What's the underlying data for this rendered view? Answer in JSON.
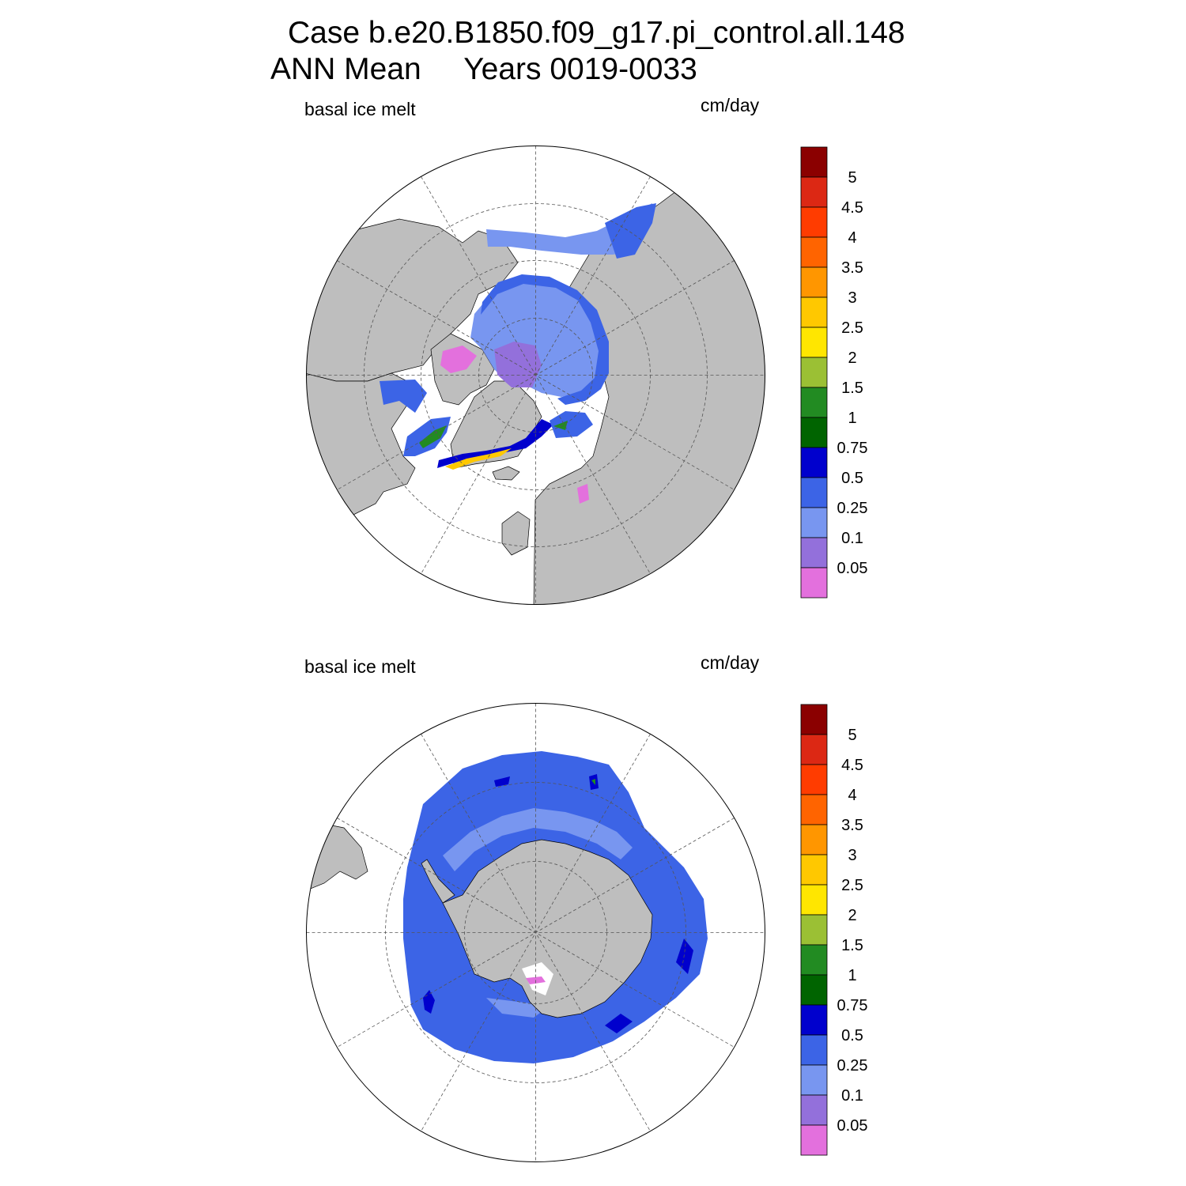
{
  "title": {
    "line1": "Case b.e20.B1850.f09_g17.pi_control.all.148",
    "line2": "ANN Mean     Years 0019-0033"
  },
  "colors": {
    "land": "#bebebe",
    "no_data": "#ffffff",
    "grid": "#555555"
  },
  "colorbar": {
    "levels": [
      "5",
      "4.5",
      "4",
      "3.5",
      "3",
      "2.5",
      "2",
      "1.5",
      "1",
      "0.75",
      "0.5",
      "0.25",
      "0.1",
      "0.05"
    ],
    "colors": [
      "#8b0000",
      "#dc2814",
      "#ff3c00",
      "#ff6400",
      "#ff9600",
      "#ffc800",
      "#ffe600",
      "#9bc034",
      "#228b22",
      "#006400",
      "#0000cd",
      "#3c64e6",
      "#7896f0",
      "#9370db",
      "#e370dd"
    ]
  },
  "panels": [
    {
      "hemisphere": "north",
      "variable": "basal ice melt",
      "units": "cm/day"
    },
    {
      "hemisphere": "south",
      "variable": "basal ice melt",
      "units": "cm/day"
    }
  ]
}
